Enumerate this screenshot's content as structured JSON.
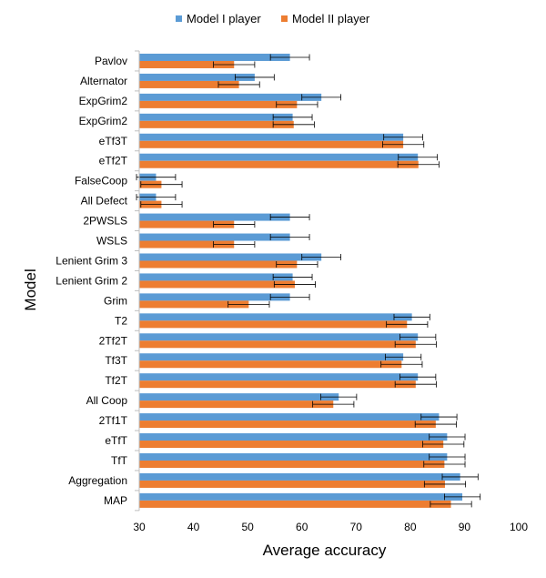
{
  "chart_data": {
    "type": "bar",
    "orientation": "horizontal",
    "title": "",
    "xlabel": "Average accuracy",
    "ylabel": "Model",
    "xlim": [
      30,
      100
    ],
    "xticks": [
      30,
      40,
      50,
      60,
      70,
      80,
      90,
      100
    ],
    "grid": false,
    "legend_position": "top",
    "categories": [
      "Pavlov",
      "Alternator",
      "ExpGrim2",
      "ExpGrim2",
      "eTf3T",
      "eTf2T",
      "FalseCoop",
      "All Defect",
      "2PWSLS",
      "WSLS",
      "Lenient Grim 3",
      "Lenient Grim 2",
      "Grim",
      "T2",
      "2Tf2T",
      "Tf3T",
      "Tf2T",
      "All Coop",
      "2Tf1T",
      "eTfT",
      "TfT",
      "Aggregation",
      "MAP"
    ],
    "series": [
      {
        "name": "Model I player",
        "color": "#5b9bd5",
        "values": [
          57.8,
          51.3,
          63.6,
          58.3,
          78.7,
          81.4,
          33.1,
          33.1,
          57.8,
          57.8,
          63.6,
          58.3,
          57.8,
          80.3,
          81.4,
          78.7,
          81.4,
          66.8,
          85.3,
          86.8,
          86.8,
          89.2,
          89.6
        ],
        "errors": [
          3.6,
          3.6,
          3.6,
          3.6,
          3.6,
          3.6,
          3.6,
          3.6,
          3.6,
          3.6,
          3.6,
          3.6,
          3.6,
          3.3,
          3.3,
          3.3,
          3.3,
          3.3,
          3.3,
          3.3,
          3.3,
          3.3,
          3.3
        ]
      },
      {
        "name": "Model II player",
        "color": "#ed7d31",
        "values": [
          47.5,
          48.4,
          59.1,
          58.5,
          78.7,
          81.5,
          34.1,
          34.1,
          47.5,
          47.5,
          59.1,
          58.7,
          50.2,
          79.4,
          81.0,
          78.4,
          81.0,
          65.8,
          84.7,
          86.1,
          86.3,
          86.4,
          87.5
        ],
        "errors": [
          3.8,
          3.8,
          3.8,
          3.8,
          3.8,
          3.8,
          3.8,
          3.8,
          3.8,
          3.8,
          3.8,
          3.8,
          3.8,
          3.8,
          3.8,
          3.8,
          3.8,
          3.8,
          3.8,
          3.8,
          3.8,
          3.8,
          3.8
        ]
      }
    ]
  }
}
